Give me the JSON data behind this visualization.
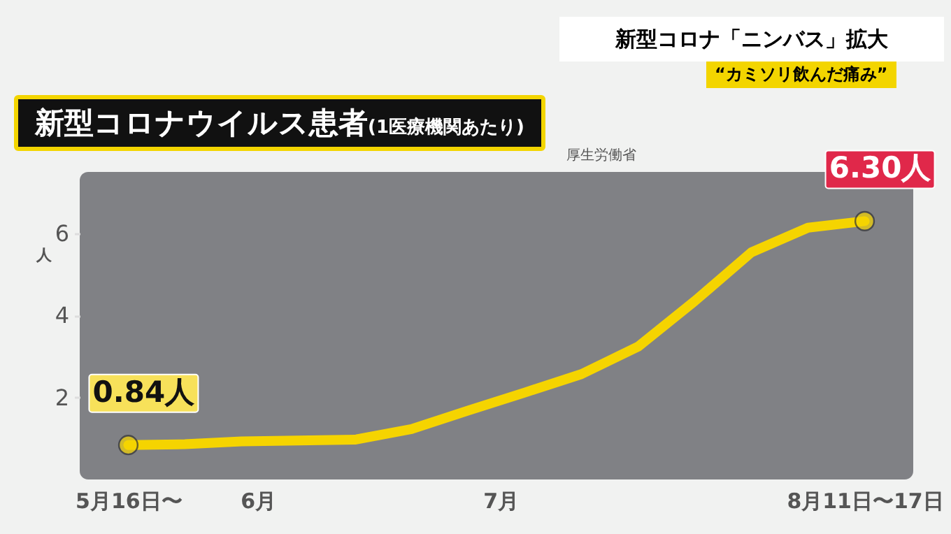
{
  "chart_data": {
    "type": "line",
    "title": "新型コロナウイルス患者(1医療機関あたり)",
    "annotations": [
      "新型コロナ「ニンバス」拡大",
      "“カミソリ飲んだ痛み”",
      "厚生労働省"
    ],
    "x": [
      "--05-16",
      "--05-23",
      "--05-30",
      "--06-06",
      "--06-13",
      "--06-20",
      "--06-27",
      "--07-04",
      "--07-11",
      "--07-18",
      "--07-25",
      "--08-01",
      "--08-08",
      "--08-15"
    ],
    "series": [
      {
        "color": "#f5d400",
        "values": [
          0.84,
          0.86,
          0.93,
          0.95,
          0.97,
          1.23,
          1.68,
          2.12,
          2.57,
          3.24,
          4.35,
          5.54,
          6.14,
          6.3
        ]
      }
    ],
    "value_labels": [
      "0.84人",
      null,
      null,
      null,
      null,
      null,
      null,
      null,
      null,
      null,
      null,
      null,
      null,
      "6.30人"
    ],
    "ylabel": "人",
    "xlim": [
      "--05-10",
      "--08-21"
    ],
    "xticks": [
      {
        "value": "--05-16",
        "label": "5月16日〜"
      },
      {
        "value": "--06-01",
        "label": "6月"
      },
      {
        "value": "--07-01",
        "label": "7月"
      },
      {
        "value": "--08-15",
        "label": "8月11日〜17日"
      }
    ],
    "ylim": [
      0,
      7.5
    ],
    "yticks": [
      2,
      4,
      6
    ],
    "grid": false
  }
}
